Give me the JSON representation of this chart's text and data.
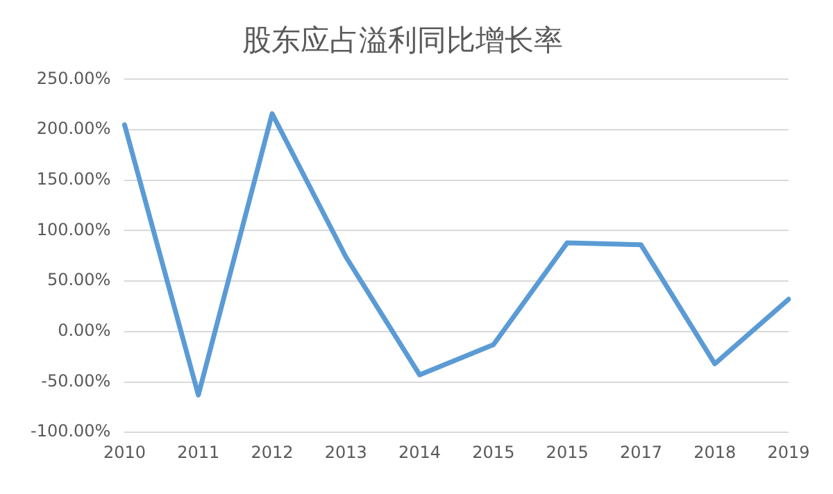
{
  "chart_data": {
    "type": "line",
    "title": "股东应占溢利同比增长率",
    "categories": [
      "2010",
      "2011",
      "2012",
      "2013",
      "2014",
      "2015",
      "2015",
      "2017",
      "2018",
      "2019"
    ],
    "series": [
      {
        "color": "#5b9bd5",
        "values": [
          205,
          -63,
          216,
          74,
          -43,
          -13,
          88,
          86,
          -32,
          32
        ]
      }
    ],
    "ylim": [
      -100,
      250
    ],
    "yticks": [
      {
        "value": -100,
        "label": "-100.00%"
      },
      {
        "value": -50,
        "label": "-50.00%"
      },
      {
        "value": 0,
        "label": "0.00%"
      },
      {
        "value": 50,
        "label": "50.00%"
      },
      {
        "value": 100,
        "label": "100.00%"
      },
      {
        "value": 150,
        "label": "150.00%"
      },
      {
        "value": 200,
        "label": "200.00%"
      },
      {
        "value": 250,
        "label": "250.00%"
      }
    ],
    "grid": "y",
    "legend": false,
    "marker": "none",
    "line_style": "solid"
  }
}
